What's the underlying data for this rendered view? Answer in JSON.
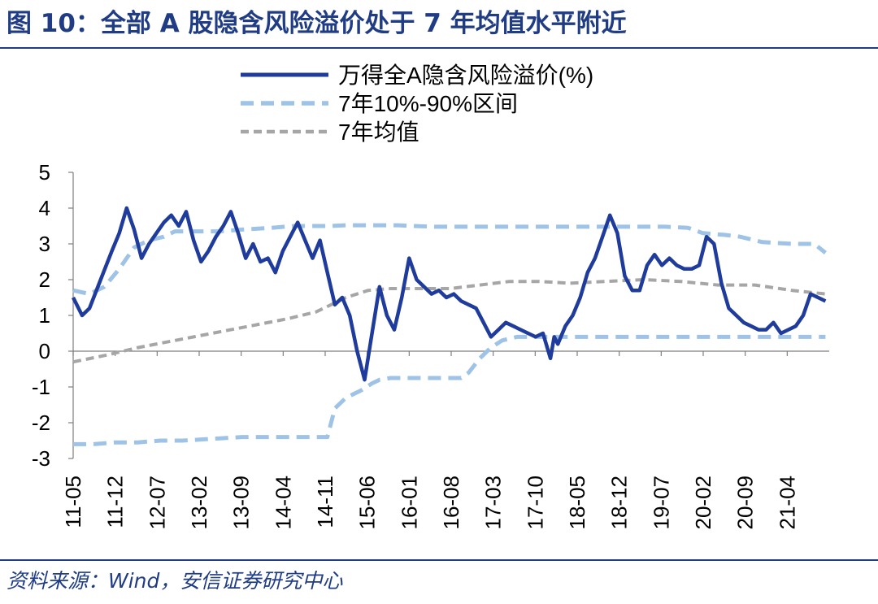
{
  "title": "图 10：全部 A 股隐含风险溢价处于 7 年均值水平附近",
  "source": "资料来源：Wind，安信证券研究中心",
  "colors": {
    "title": "#1f3c84",
    "series_main": "#1f3c9c",
    "series_band": "#9ec3e6",
    "series_mean": "#a6a6a6",
    "axis": "#7f7f7f"
  },
  "chart_data": {
    "type": "line",
    "xlabel": "",
    "ylabel": "",
    "ylim": [
      -3,
      5
    ],
    "yticks": [
      "-3",
      "-2",
      "-1",
      "0",
      "1",
      "2",
      "3",
      "4",
      "5"
    ],
    "xticks": [
      "11-05",
      "11-12",
      "12-07",
      "13-02",
      "13-09",
      "14-04",
      "14-11",
      "15-06",
      "16-01",
      "16-08",
      "17-03",
      "17-10",
      "18-05",
      "18-12",
      "19-07",
      "20-02",
      "20-09",
      "21-04"
    ],
    "grid": false,
    "legend_position": "top",
    "series": [
      {
        "name": "万得全A隐含风险溢价(%)",
        "style": "solid",
        "x": [
          2011.33,
          2011.45,
          2011.55,
          2011.7,
          2011.85,
          2011.95,
          2012.05,
          2012.15,
          2012.25,
          2012.35,
          2012.45,
          2012.55,
          2012.65,
          2012.75,
          2012.85,
          2012.95,
          2013.05,
          2013.15,
          2013.25,
          2013.35,
          2013.45,
          2013.55,
          2013.65,
          2013.75,
          2013.85,
          2013.95,
          2014.05,
          2014.15,
          2014.25,
          2014.35,
          2014.45,
          2014.55,
          2014.65,
          2014.75,
          2014.85,
          2014.95,
          2015.05,
          2015.15,
          2015.25,
          2015.35,
          2015.45,
          2015.55,
          2015.65,
          2015.75,
          2015.85,
          2015.95,
          2016.05,
          2016.15,
          2016.25,
          2016.35,
          2016.45,
          2016.55,
          2016.65,
          2016.75,
          2016.85,
          2016.95,
          2017.05,
          2017.15,
          2017.25,
          2017.35,
          2017.45,
          2017.55,
          2017.65,
          2017.75,
          2017.8,
          2017.85,
          2017.95,
          2018.05,
          2018.15,
          2018.25,
          2018.35,
          2018.45,
          2018.55,
          2018.65,
          2018.75,
          2018.85,
          2018.95,
          2019.05,
          2019.15,
          2019.25,
          2019.35,
          2019.45,
          2019.55,
          2019.65,
          2019.75,
          2019.85,
          2019.95,
          2020.05,
          2020.15,
          2020.25,
          2020.35,
          2020.45,
          2020.55,
          2020.65,
          2020.75,
          2020.85,
          2020.95,
          2021.05,
          2021.15,
          2021.25,
          2021.35,
          2021.45
        ],
        "y": [
          1.5,
          1.0,
          1.2,
          2.0,
          2.8,
          3.3,
          4.0,
          3.4,
          2.6,
          3.0,
          3.3,
          3.6,
          3.8,
          3.5,
          3.9,
          3.1,
          2.5,
          2.8,
          3.2,
          3.5,
          3.9,
          3.3,
          2.6,
          3.0,
          2.5,
          2.6,
          2.2,
          2.8,
          3.2,
          3.6,
          3.1,
          2.6,
          3.1,
          2.2,
          1.3,
          1.5,
          1.0,
          0.0,
          -0.8,
          0.5,
          1.8,
          1.0,
          0.6,
          1.5,
          2.6,
          2.0,
          1.8,
          1.6,
          1.7,
          1.5,
          1.6,
          1.4,
          1.3,
          1.2,
          0.8,
          0.4,
          0.6,
          0.8,
          0.7,
          0.6,
          0.5,
          0.4,
          0.5,
          -0.2,
          0.4,
          0.2,
          0.7,
          1.0,
          1.5,
          2.2,
          2.6,
          3.2,
          3.8,
          3.3,
          2.1,
          1.7,
          1.7,
          2.4,
          2.7,
          2.4,
          2.6,
          2.4,
          2.3,
          2.3,
          2.4,
          3.2,
          3.0,
          1.9,
          1.2,
          1.0,
          0.8,
          0.7,
          0.6,
          0.6,
          0.8,
          0.5,
          0.6,
          0.7,
          1.0,
          1.6,
          1.5,
          1.4
        ]
      },
      {
        "name": "7年10%-90%区间",
        "style": "dashed",
        "x": [
          2011.33,
          2011.55,
          2011.75,
          2011.95,
          2012.15,
          2012.35,
          2012.55,
          2012.7,
          2012.9,
          2013.3,
          2013.6,
          2014.0,
          2014.3,
          2014.6,
          2014.8,
          2015.0,
          2015.4,
          2015.7,
          2015.9,
          2016.2,
          2016.5,
          2016.7,
          2017.0,
          2017.5,
          2018.0,
          2018.5,
          2018.95,
          2019.3,
          2019.6,
          2019.8,
          2020.1,
          2020.3,
          2020.6,
          2021.0,
          2021.3,
          2021.45
        ],
        "y": [
          1.7,
          1.6,
          1.8,
          2.3,
          2.9,
          3.1,
          3.2,
          3.35,
          3.35,
          3.35,
          3.4,
          3.45,
          3.5,
          3.5,
          3.5,
          3.52,
          3.52,
          3.52,
          3.5,
          3.48,
          3.48,
          3.48,
          3.48,
          3.48,
          3.48,
          3.48,
          3.48,
          3.48,
          3.45,
          3.3,
          3.25,
          3.2,
          3.05,
          3.0,
          3.0,
          2.75
        ]
      },
      {
        "name": "",
        "style": "dashed",
        "x": [
          2011.33,
          2011.6,
          2011.9,
          2012.2,
          2012.5,
          2012.8,
          2013.2,
          2013.6,
          2014.0,
          2014.3,
          2014.6,
          2014.75,
          2014.85,
          2015.0,
          2015.2,
          2015.35,
          2015.45,
          2015.6,
          2015.8,
          2016.0,
          2016.2,
          2016.4,
          2016.55,
          2016.65,
          2016.8,
          2016.95,
          2017.1,
          2017.3,
          2017.6,
          2018.0,
          2018.5,
          2019.0,
          2019.5,
          2020.0,
          2020.5,
          2021.0,
          2021.45
        ],
        "y": [
          -2.6,
          -2.6,
          -2.55,
          -2.55,
          -2.5,
          -2.5,
          -2.45,
          -2.4,
          -2.4,
          -2.4,
          -2.4,
          -2.4,
          -1.6,
          -1.3,
          -1.1,
          -0.9,
          -0.8,
          -0.75,
          -0.75,
          -0.75,
          -0.75,
          -0.75,
          -0.75,
          -0.6,
          -0.2,
          0.1,
          0.3,
          0.4,
          0.4,
          0.4,
          0.4,
          0.4,
          0.4,
          0.4,
          0.4,
          0.4,
          0.4
        ]
      },
      {
        "name": "7年均值",
        "style": "dotted",
        "x": [
          2011.33,
          2011.8,
          2012.2,
          2012.7,
          2013.2,
          2013.7,
          2014.2,
          2014.6,
          2015.0,
          2015.3,
          2015.6,
          2016.0,
          2016.4,
          2016.8,
          2017.2,
          2017.6,
          2018.0,
          2018.5,
          2019.0,
          2019.5,
          2020.0,
          2020.5,
          2021.0,
          2021.45
        ],
        "y": [
          -0.3,
          -0.1,
          0.1,
          0.3,
          0.5,
          0.7,
          0.9,
          1.1,
          1.5,
          1.7,
          1.75,
          1.75,
          1.75,
          1.85,
          1.95,
          1.95,
          1.9,
          1.95,
          2.0,
          1.95,
          1.85,
          1.85,
          1.7,
          1.6
        ]
      }
    ]
  }
}
